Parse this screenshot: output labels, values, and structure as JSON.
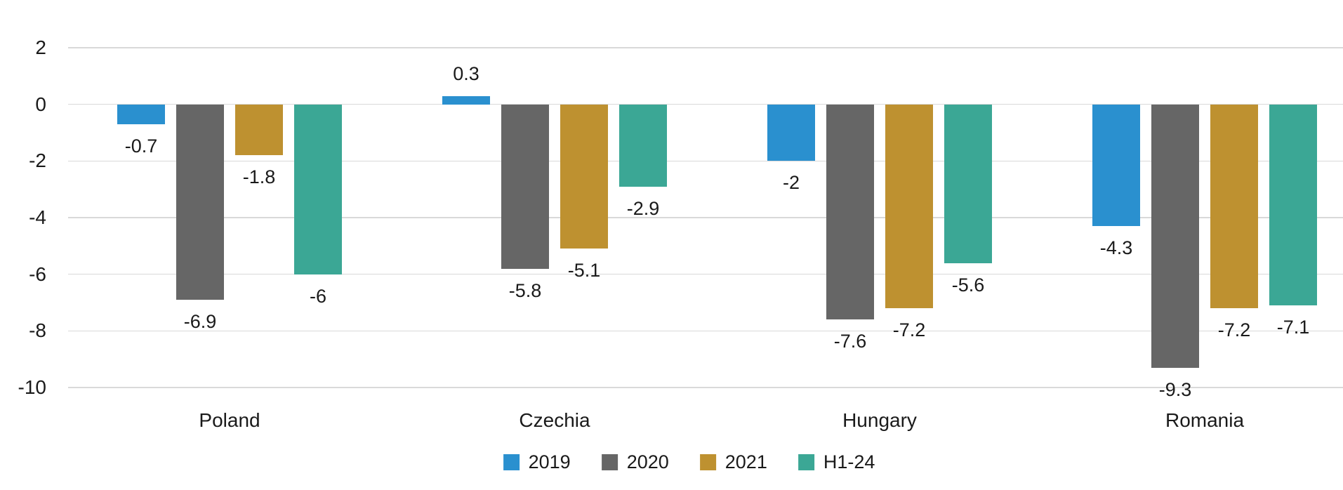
{
  "chart_data": {
    "type": "bar",
    "title": "",
    "xlabel": "",
    "ylabel": "",
    "categories": [
      "Poland",
      "Czechia",
      "Hungary",
      "Romania"
    ],
    "series": [
      {
        "name": "2019",
        "color": "#2a90cf",
        "values": [
          -0.7,
          0.3,
          -2,
          -4.3
        ]
      },
      {
        "name": "2020",
        "color": "#666666",
        "values": [
          -6.9,
          -5.8,
          -7.6,
          -9.3
        ]
      },
      {
        "name": "2021",
        "color": "#be9130",
        "values": [
          -1.8,
          -5.1,
          -7.2,
          -7.2
        ]
      },
      {
        "name": "H1-24",
        "color": "#3ba795",
        "values": [
          -6,
          -2.9,
          -5.6,
          -7.1
        ]
      }
    ],
    "y_ticks": [
      2,
      0,
      -2,
      -4,
      -6,
      -8,
      -10
    ],
    "ylim": [
      -10,
      2
    ],
    "grid": true,
    "gridline_color": "#d9d9d9",
    "text_color": "#1a1a1a",
    "legend_position": "bottom",
    "legend_items": [
      "2019",
      "2020",
      "2021",
      "H1-24"
    ],
    "data_labels_shown": true
  }
}
